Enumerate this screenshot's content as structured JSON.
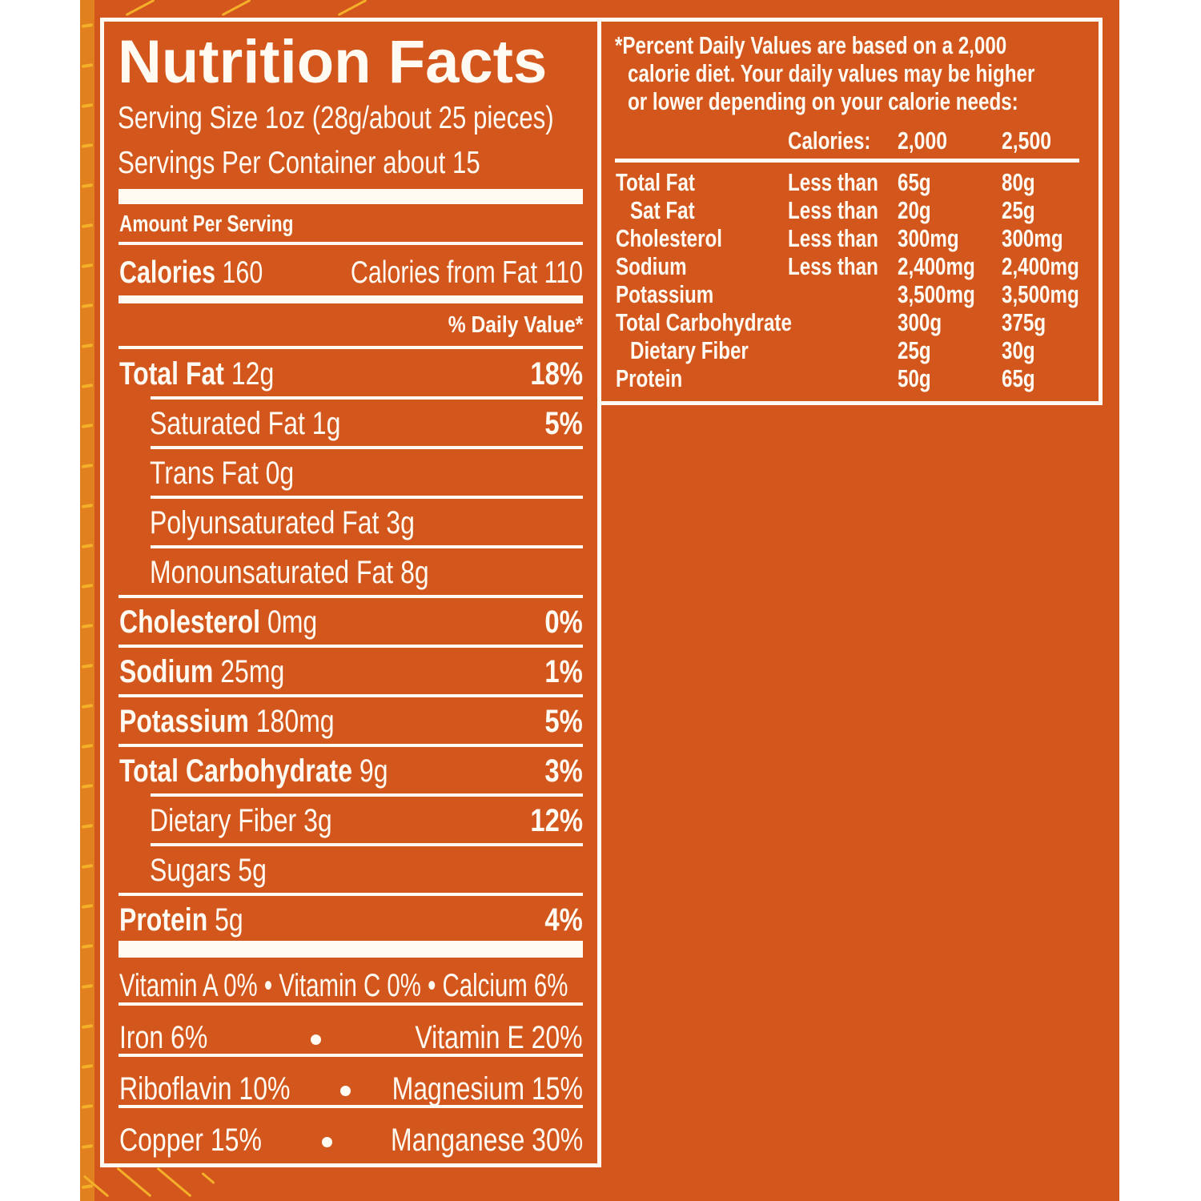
{
  "colors": {
    "background_orange": "#d3571d",
    "strip_orange": "#e0801e",
    "accent_yellow": "#f5b02a",
    "text_white": "#fffaf2"
  },
  "label": {
    "title": "Nutrition Facts",
    "serving_size": "Serving Size 1oz (28g/about 25 pieces)",
    "servings_per_container": "Servings Per Container about 15",
    "amount_per_serving": "Amount Per Serving",
    "calories": {
      "label": "Calories",
      "value": "160"
    },
    "calories_from_fat": "Calories from Fat 110",
    "daily_value_header": "% Daily Value*",
    "nutrients": [
      {
        "name": "Total Fat",
        "amount": "12g",
        "dv": "18%",
        "bold": true,
        "indent": false
      },
      {
        "name": "Saturated Fat",
        "amount": "1g",
        "dv": "5%",
        "bold": false,
        "indent": true
      },
      {
        "name": "Trans Fat",
        "amount": "0g",
        "dv": "",
        "bold": false,
        "indent": true
      },
      {
        "name": "Polyunsaturated Fat",
        "amount": "3g",
        "dv": "",
        "bold": false,
        "indent": true
      },
      {
        "name": "Monounsaturated Fat",
        "amount": "8g",
        "dv": "",
        "bold": false,
        "indent": true
      },
      {
        "name": "Cholesterol",
        "amount": "0mg",
        "dv": "0%",
        "bold": true,
        "indent": false
      },
      {
        "name": "Sodium",
        "amount": "25mg",
        "dv": "1%",
        "bold": true,
        "indent": false
      },
      {
        "name": "Potassium",
        "amount": "180mg",
        "dv": "5%",
        "bold": true,
        "indent": false
      },
      {
        "name": "Total Carbohydrate",
        "amount": "9g",
        "dv": "3%",
        "bold": true,
        "indent": false
      },
      {
        "name": "Dietary Fiber",
        "amount": "3g",
        "dv": "12%",
        "bold": false,
        "indent": true
      },
      {
        "name": "Sugars",
        "amount": "5g",
        "dv": "",
        "bold": false,
        "indent": true
      },
      {
        "name": "Protein",
        "amount": "5g",
        "dv": "4%",
        "bold": true,
        "indent": false
      }
    ],
    "vitamins": [
      {
        "left": "Vitamin A 0%",
        "middle": "Vitamin C 0%",
        "right": "Calcium 6%"
      },
      {
        "left": "Iron 6%",
        "right": "Vitamin E 20%"
      },
      {
        "left": "Riboflavin 10%",
        "right": "Magnesium 15%"
      },
      {
        "left": "Copper 15%",
        "right": "Manganese 30%"
      }
    ]
  },
  "footnote": {
    "text_lines": [
      "*Percent Daily Values are based on a 2,000",
      "calorie diet. Your daily values may be higher",
      "or lower depending on your calorie needs:"
    ],
    "header": {
      "label": "Calories:",
      "col1": "2,000",
      "col2": "2,500"
    },
    "rows": [
      {
        "name": "Total Fat",
        "qualifier": "Less than",
        "col1": "65g",
        "col2": "80g",
        "indent": false
      },
      {
        "name": "Sat Fat",
        "qualifier": "Less than",
        "col1": "20g",
        "col2": "25g",
        "indent": true
      },
      {
        "name": "Cholesterol",
        "qualifier": "Less than",
        "col1": "300mg",
        "col2": "300mg",
        "indent": false
      },
      {
        "name": "Sodium",
        "qualifier": "Less than",
        "col1": "2,400mg",
        "col2": "2,400mg",
        "indent": false
      },
      {
        "name": "Potassium",
        "qualifier": "",
        "col1": "3,500mg",
        "col2": "3,500mg",
        "indent": false
      },
      {
        "name": "Total Carbohydrate",
        "qualifier": "",
        "col1": "300g",
        "col2": "375g",
        "indent": false
      },
      {
        "name": "Dietary Fiber",
        "qualifier": "",
        "col1": "25g",
        "col2": "30g",
        "indent": true
      },
      {
        "name": "Protein",
        "qualifier": "",
        "col1": "50g",
        "col2": "65g",
        "indent": false
      }
    ]
  }
}
